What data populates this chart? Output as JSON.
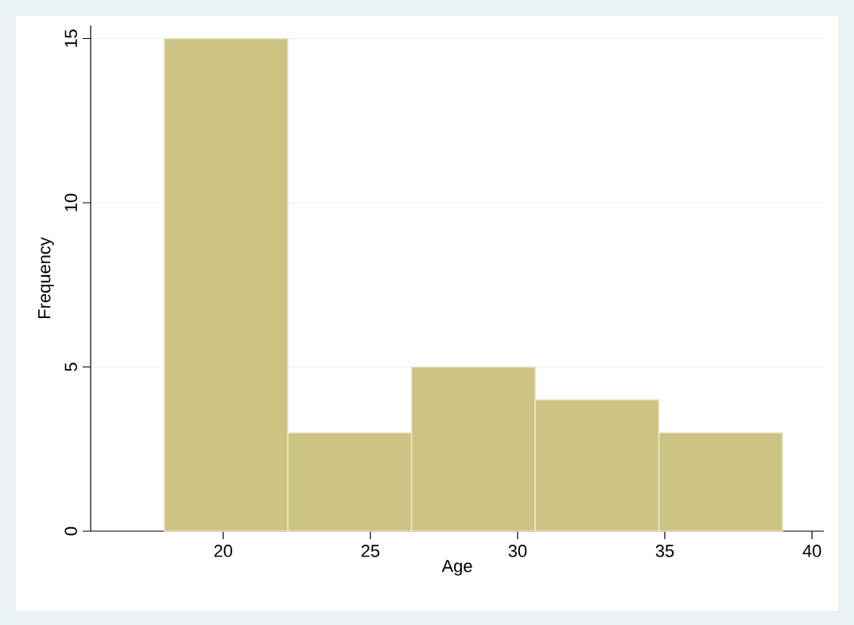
{
  "chart_data": {
    "type": "histogram",
    "xlabel": "Age",
    "ylabel": "Frequency",
    "bins": [
      18,
      22.2,
      26.4,
      30.6,
      34.8,
      39
    ],
    "values": [
      15,
      3,
      5,
      4,
      3
    ],
    "color": "#cdc383",
    "xlim": [
      15.5,
      40.4
    ],
    "xticks": [
      20,
      25,
      30,
      35,
      40
    ],
    "ylim": [
      0,
      15.4
    ],
    "yticks": [
      0,
      5,
      10,
      15
    ],
    "grid": "y"
  }
}
